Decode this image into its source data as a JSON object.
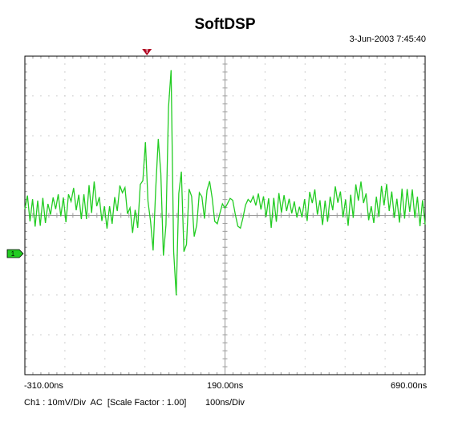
{
  "app": {
    "title": "SoftDSP",
    "timestamp": "3-Jun-2003 7:45:40"
  },
  "markers": {
    "trigger_label": "T",
    "channel_label": "1"
  },
  "axis": {
    "x_labels": [
      "-310.00ns",
      "190.00ns",
      "690.00ns"
    ]
  },
  "status": {
    "channel_info": "Ch1 : 10mV/Div  AC  [Scale Factor : 1.00]",
    "timebase": "100ns/Div"
  },
  "colors": {
    "trace": "#22cc22",
    "grid": "#9a9a9a",
    "frame": "#000000",
    "trigger_marker": "#b00020",
    "channel_marker": "#22cc22"
  },
  "chart_data": {
    "type": "line",
    "title": "SoftDSP",
    "xlabel": "",
    "ylabel": "",
    "xlim": [
      -310,
      690
    ],
    "ylim": [
      -40,
      40
    ],
    "x_unit": "ns",
    "y_unit": "mV",
    "grid": true,
    "x_divisions": 10,
    "y_divisions": 8,
    "x_tick_labels": [
      "-310.00ns",
      "190.00ns",
      "690.00ns"
    ],
    "series": [
      {
        "values_mV": [
          1.6,
          5.0,
          -1.5,
          4.1,
          -2.8,
          3.7,
          -2.6,
          4.4,
          -1.9,
          2.9,
          0.2,
          4.5,
          1.6,
          5.3,
          -0.2,
          4.5,
          -1.7,
          5.3,
          3.5,
          6.9,
          1.3,
          5.2,
          -0.9,
          5.3,
          -0.9,
          7.6,
          0.6,
          8.5,
          2.3,
          4.6,
          -1.4,
          2.3,
          -3.3,
          2.3,
          -2.1,
          4.6,
          1.1,
          7.5,
          5.7,
          7.0,
          0.4,
          1.9,
          -4.4,
          1.4,
          -3.1,
          7.8,
          8.7,
          18.4,
          3.5,
          -1.5,
          -8.8,
          6.5,
          19.2,
          10.6,
          -10.1,
          -2.4,
          27.2,
          36.5,
          -9.1,
          -20.1,
          5.5,
          11.0,
          -9.1,
          -7.3,
          6.6,
          4.8,
          -5.3,
          -2.4,
          5.7,
          4.7,
          -0.8,
          6.3,
          8.6,
          4.4,
          -1.5,
          -2.1,
          0.5,
          2.9,
          1.8,
          3.0,
          4.3,
          3.8,
          0.3,
          -2.7,
          -3.2,
          -0.6,
          2.6,
          4.0,
          3.3,
          4.8,
          2.5,
          5.5,
          1.5,
          4.8,
          -0.4,
          4.3,
          -3.1,
          4.4,
          -1.6,
          5.6,
          0.7,
          5.1,
          1.1,
          4.2,
          0.5,
          3.5,
          -0.5,
          2.2,
          -0.5,
          4.1,
          -1.4,
          5.9,
          3.1,
          6.5,
          0.2,
          3.8,
          -2.4,
          3.7,
          -1.6,
          4.7,
          1.3,
          7.3,
          3.2,
          6.0,
          -0.5,
          4.0,
          -2.6,
          5.2,
          -0.6,
          7.8,
          3.7,
          8.5,
          3.1,
          5.5,
          -1.2,
          2.3,
          -1.9,
          4.7,
          -0.4,
          7.4,
          2.5,
          7.9,
          1.1,
          6.0,
          -0.6,
          4.2,
          -1.8,
          6.7,
          -0.8,
          6.6,
          0.9,
          6.5,
          -0.6,
          4.7,
          -2.7,
          3.8,
          -2.3
        ]
      }
    ]
  }
}
